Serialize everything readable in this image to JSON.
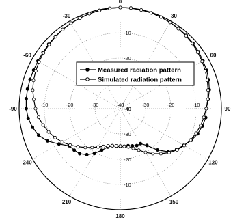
{
  "chart_data": {
    "type": "polar-line",
    "angle_ticks": [
      {
        "deg": 0,
        "label": "0"
      },
      {
        "deg": 30,
        "label": "-30"
      },
      {
        "deg": 60,
        "label": "-60"
      },
      {
        "deg": 90,
        "label": "-90"
      },
      {
        "deg": 120,
        "label": "240"
      },
      {
        "deg": 150,
        "label": "210"
      },
      {
        "deg": 180,
        "label": "180"
      },
      {
        "deg": 210,
        "label": "150"
      },
      {
        "deg": 240,
        "label": "120"
      },
      {
        "deg": 270,
        "label": "90"
      },
      {
        "deg": 300,
        "label": "60"
      },
      {
        "deg": 330,
        "label": "30"
      }
    ],
    "radial_range": [
      -40,
      0
    ],
    "radial_rings": [
      -40,
      -30,
      -20,
      -10,
      0
    ],
    "radial_tick_labels": [
      "-10",
      "-20",
      "-30",
      "-40"
    ],
    "grid": true,
    "legend_position": "upper-center",
    "series": [
      {
        "name": "Measured radiation pattern",
        "marker": "filled-circle",
        "color": "#000000",
        "points": [
          [
            0,
            0
          ],
          [
            6,
            -0.1
          ],
          [
            12,
            -0.3
          ],
          [
            18,
            -0.5
          ],
          [
            24,
            -0.8
          ],
          [
            30,
            -1.0
          ],
          [
            36,
            -1.3
          ],
          [
            42,
            -1.6
          ],
          [
            48,
            -1.9
          ],
          [
            54,
            -2.2
          ],
          [
            60,
            -2.4
          ],
          [
            66,
            -2.5
          ],
          [
            72,
            -2.5
          ],
          [
            78,
            -2.5
          ],
          [
            84,
            -2.6
          ],
          [
            90,
            -2.8
          ],
          [
            96,
            -3.4
          ],
          [
            102,
            -4.5
          ],
          [
            108,
            -6
          ],
          [
            114,
            -8.5
          ],
          [
            120,
            -12
          ],
          [
            126,
            -15
          ],
          [
            132,
            -15.5
          ],
          [
            138,
            -16
          ],
          [
            144,
            -17.5
          ],
          [
            150,
            -19.5
          ],
          [
            156,
            -22
          ],
          [
            162,
            -24
          ],
          [
            168,
            -25
          ],
          [
            174,
            -25
          ],
          [
            180,
            -25
          ],
          [
            186,
            -25
          ],
          [
            192,
            -25
          ],
          [
            198,
            -24.5
          ],
          [
            204,
            -24
          ],
          [
            210,
            -24
          ],
          [
            216,
            -22
          ],
          [
            222,
            -18
          ],
          [
            228,
            -14.5
          ],
          [
            234,
            -12.5
          ],
          [
            240,
            -11
          ],
          [
            246,
            -9.2
          ],
          [
            252,
            -7.8
          ],
          [
            258,
            -6.8
          ],
          [
            264,
            -6
          ],
          [
            270,
            -6
          ],
          [
            276,
            -5
          ],
          [
            282,
            -4
          ],
          [
            288,
            -3.2
          ],
          [
            294,
            -2.6
          ],
          [
            300,
            -2.2
          ],
          [
            306,
            -1.7
          ],
          [
            312,
            -1.3
          ],
          [
            318,
            -1.0
          ],
          [
            324,
            -0.8
          ],
          [
            330,
            -0.6
          ],
          [
            336,
            -0.4
          ],
          [
            342,
            -0.2
          ],
          [
            348,
            -0.1
          ],
          [
            354,
            0
          ],
          [
            360,
            0
          ]
        ]
      },
      {
        "name": "Simulated radiation pattern",
        "marker": "open-circle",
        "color": "#000000",
        "points": [
          [
            0,
            0
          ],
          [
            6,
            -0.1
          ],
          [
            12,
            -0.3
          ],
          [
            18,
            -0.5
          ],
          [
            24,
            -0.8
          ],
          [
            30,
            -1.0
          ],
          [
            36,
            -1.3
          ],
          [
            42,
            -1.7
          ],
          [
            48,
            -2.1
          ],
          [
            54,
            -2.5
          ],
          [
            60,
            -2.9
          ],
          [
            66,
            -3.4
          ],
          [
            72,
            -3.9
          ],
          [
            78,
            -4.6
          ],
          [
            84,
            -5.6
          ],
          [
            90,
            -6.5
          ],
          [
            96,
            -7.5
          ],
          [
            102,
            -8.8
          ],
          [
            108,
            -10.2
          ],
          [
            114,
            -11.8
          ],
          [
            120,
            -13.5
          ],
          [
            126,
            -15.5
          ],
          [
            132,
            -17.5
          ],
          [
            138,
            -19.3
          ],
          [
            144,
            -21
          ],
          [
            150,
            -22.5
          ],
          [
            156,
            -23.6
          ],
          [
            162,
            -24.5
          ],
          [
            168,
            -25
          ],
          [
            174,
            -25.2
          ],
          [
            180,
            -25.2
          ],
          [
            186,
            -25
          ],
          [
            192,
            -24.5
          ],
          [
            198,
            -23.5
          ],
          [
            204,
            -22
          ],
          [
            210,
            -20
          ],
          [
            216,
            -18
          ],
          [
            222,
            -16
          ],
          [
            228,
            -14
          ],
          [
            234,
            -12.2
          ],
          [
            240,
            -10.8
          ],
          [
            246,
            -9.5
          ],
          [
            252,
            -8.5
          ],
          [
            258,
            -7.5
          ],
          [
            264,
            -6.8
          ],
          [
            270,
            -6
          ],
          [
            276,
            -5.2
          ],
          [
            282,
            -4.5
          ],
          [
            288,
            -3.8
          ],
          [
            294,
            -3.2
          ],
          [
            300,
            -2.6
          ],
          [
            306,
            -2.1
          ],
          [
            312,
            -1.6
          ],
          [
            318,
            -1.2
          ],
          [
            324,
            -0.9
          ],
          [
            330,
            -0.6
          ],
          [
            336,
            -0.4
          ],
          [
            342,
            -0.2
          ],
          [
            348,
            -0.1
          ],
          [
            354,
            0
          ],
          [
            360,
            0
          ]
        ]
      }
    ]
  }
}
